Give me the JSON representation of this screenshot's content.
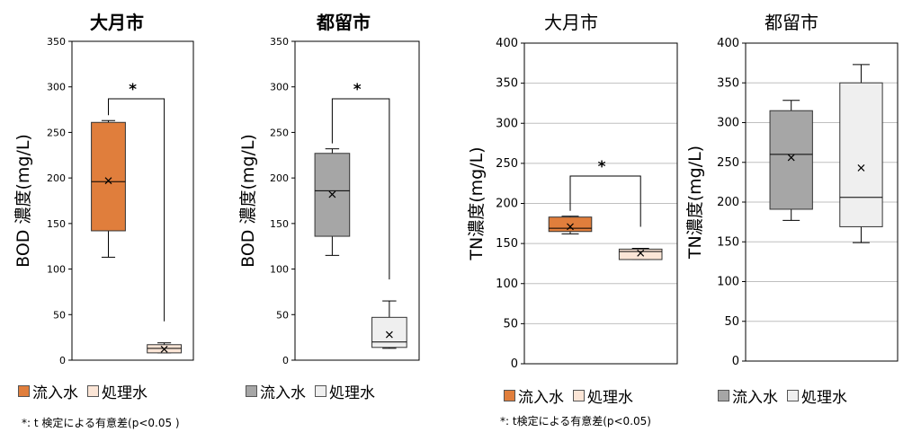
{
  "colors": {
    "inflow_orange": "#E07E3C",
    "effluent_orange": "#FBE5D6",
    "inflow_gray": "#A6A6A6",
    "effluent_gray": "#EFEFEF",
    "grid": "#BFBFBF"
  },
  "legend_bod": {
    "inflow": "流入水",
    "effluent": "処理水"
  },
  "legend_tn": {
    "inflow": "流入水",
    "effluent": "処理水"
  },
  "notes": {
    "bod": "*: t 検定による有意差(p<0.05 )",
    "tn": "*: t検定による有意差(p<0.05)"
  },
  "chart_data": [
    {
      "type": "box",
      "title": "大月市",
      "ylabel": "BOD 濃度(mg/L)",
      "ylim": [
        0,
        350
      ],
      "yticks": [
        "0",
        "50",
        "100",
        "150",
        "200",
        "250",
        "300",
        "350"
      ],
      "grid": false,
      "significance": "*",
      "series": [
        {
          "name": "流入水",
          "min": 113,
          "q1": 142,
          "median": 196,
          "q3": 261,
          "max": 263,
          "mean": 197
        },
        {
          "name": "処理水",
          "min": 8,
          "q1": 8,
          "median": 13,
          "q3": 17,
          "max": 19,
          "mean": 12
        }
      ]
    },
    {
      "type": "box",
      "title": "都留市",
      "ylabel": "BOD 濃度(mg/L)",
      "ylim": [
        0,
        350
      ],
      "yticks": [
        "0",
        "50",
        "100",
        "150",
        "200",
        "250",
        "300",
        "350"
      ],
      "grid": false,
      "significance": "*",
      "series": [
        {
          "name": "流入水",
          "min": 115,
          "q1": 136,
          "median": 186,
          "q3": 227,
          "max": 232,
          "mean": 182
        },
        {
          "name": "処理水",
          "min": 13,
          "q1": 14,
          "median": 20,
          "q3": 47,
          "max": 65,
          "mean": 28
        }
      ]
    },
    {
      "type": "box",
      "title": "大月市",
      "ylabel": "TN濃度(mg/L)",
      "ylim": [
        0,
        400
      ],
      "yticks": [
        "0",
        "50",
        "100",
        "150",
        "200",
        "250",
        "300",
        "350",
        "400"
      ],
      "grid": true,
      "significance": "*",
      "series": [
        {
          "name": "流入水",
          "min": 162,
          "q1": 165,
          "median": 169,
          "q3": 183,
          "max": 184,
          "mean": 171
        },
        {
          "name": "処理水",
          "min": 130,
          "q1": 130,
          "median": 140,
          "q3": 143,
          "max": 144,
          "mean": 138
        }
      ]
    },
    {
      "type": "box",
      "title": "都留市",
      "ylabel": "TN濃度(mg/L)",
      "ylim": [
        0,
        400
      ],
      "yticks": [
        "0",
        "50",
        "100",
        "150",
        "200",
        "250",
        "300",
        "350",
        "400"
      ],
      "grid": true,
      "significance": "",
      "series": [
        {
          "name": "流入水",
          "min": 177,
          "q1": 191,
          "median": 260,
          "q3": 315,
          "max": 328,
          "mean": 256
        },
        {
          "name": "処理水",
          "min": 149,
          "q1": 169,
          "median": 206,
          "q3": 350,
          "max": 373,
          "mean": 243
        }
      ]
    }
  ]
}
